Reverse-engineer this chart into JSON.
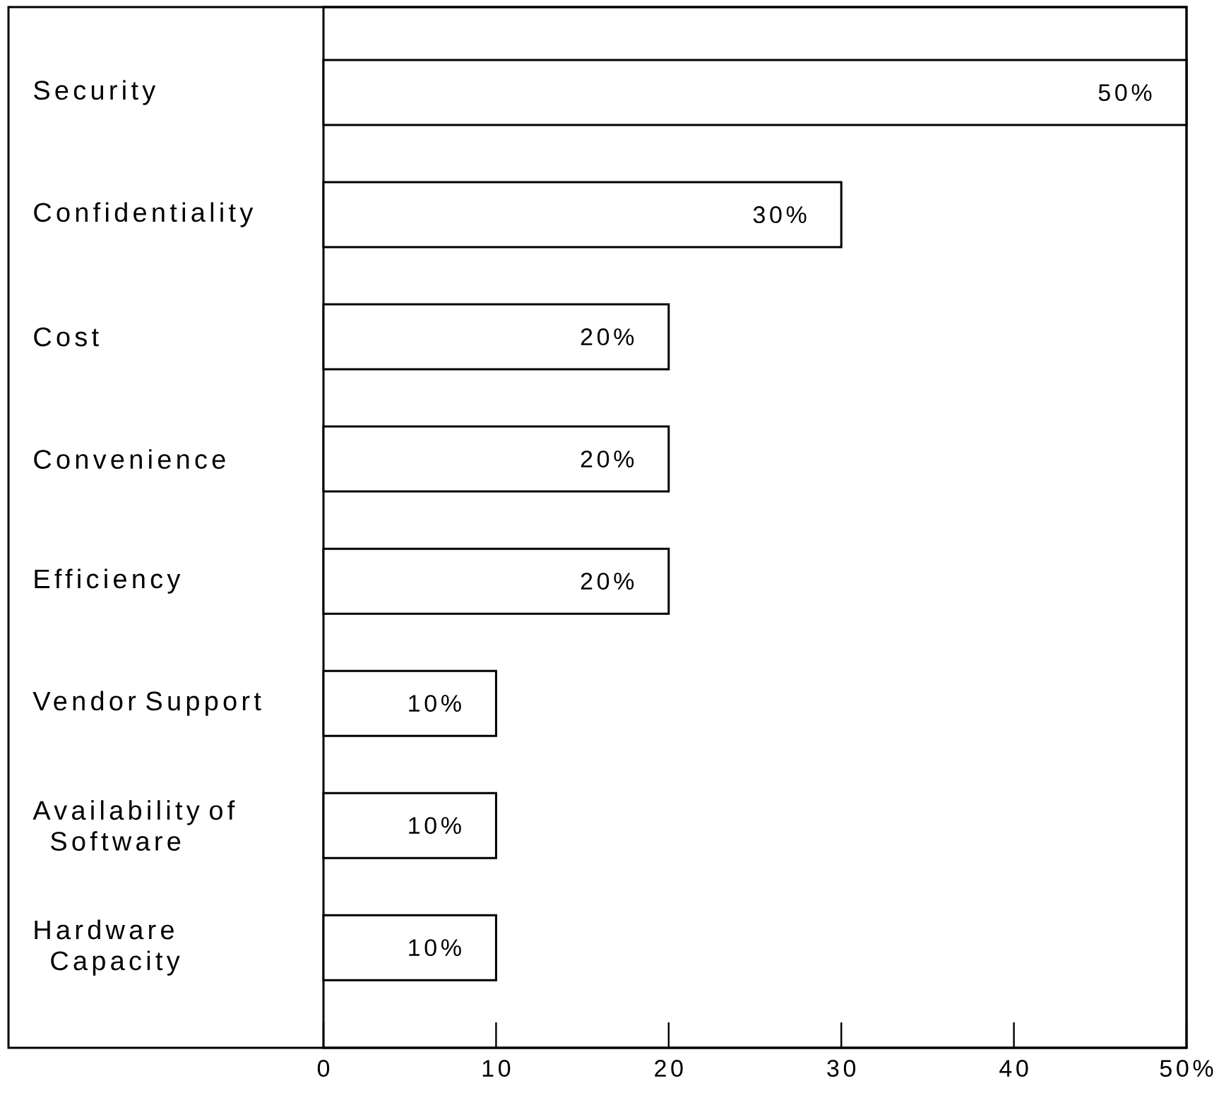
{
  "chart_data": {
    "type": "bar",
    "orientation": "horizontal",
    "categories": [
      "Security",
      "Confidentiality",
      "Cost",
      "Convenience",
      "Efficiency",
      "Vendor Support",
      "Availability of Software",
      "Hardware Capacity"
    ],
    "values": [
      50,
      30,
      20,
      20,
      20,
      10,
      10,
      10
    ],
    "value_labels": [
      "50%",
      "30%",
      "20%",
      "20%",
      "20%",
      "10%",
      "10%",
      "10%"
    ],
    "color": "#ffffff",
    "xlim": [
      0,
      50
    ],
    "xticks": [
      0,
      10,
      20,
      30,
      40,
      {
        "value": 50,
        "label": "50%"
      }
    ]
  }
}
